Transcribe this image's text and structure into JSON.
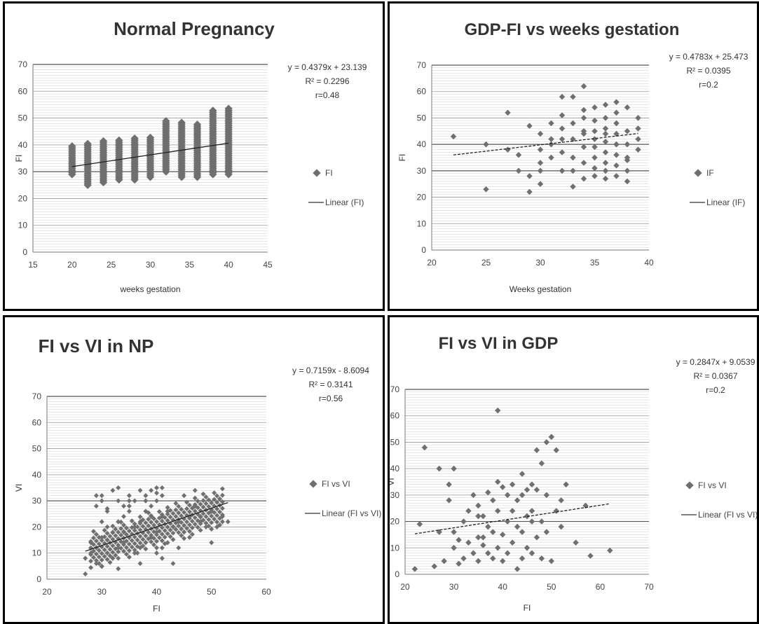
{
  "chart_data": [
    {
      "id": "np",
      "type": "scatter",
      "title": "Normal Pregnancy",
      "xlabel": "weeks gestation",
      "ylabel": "FI",
      "xlim": [
        15,
        45
      ],
      "ylim": [
        0,
        70
      ],
      "xticks": [
        "15",
        "20",
        "25",
        "30",
        "35",
        "40",
        "45"
      ],
      "yticks": [
        "0",
        "10",
        "20",
        "30",
        "40",
        "50",
        "60",
        "70"
      ],
      "legend": [
        "FI",
        "Linear (FI)"
      ],
      "equation": [
        "y = 0.4379x + 23.139",
        "R² = 0.2296",
        "r=0.48"
      ],
      "trendline": {
        "slope": 0.4379,
        "intercept": 23.139,
        "x_from": 20,
        "x_to": 40
      },
      "style": "columns",
      "columns": [
        {
          "x": 20,
          "ymin": 29,
          "ymax": 40
        },
        {
          "x": 22,
          "ymin": 25,
          "ymax": 41
        },
        {
          "x": 24,
          "ymin": 26,
          "ymax": 42
        },
        {
          "x": 26,
          "ymin": 27,
          "ymax": 42
        },
        {
          "x": 28,
          "ymin": 27,
          "ymax": 43
        },
        {
          "x": 30,
          "ymin": 28,
          "ymax": 43
        },
        {
          "x": 32,
          "ymin": 30,
          "ymax": 49
        },
        {
          "x": 34,
          "ymin": 28,
          "ymax": 49
        },
        {
          "x": 36,
          "ymin": 28,
          "ymax": 48
        },
        {
          "x": 38,
          "ymin": 29,
          "ymax": 53
        },
        {
          "x": 40,
          "ymin": 29,
          "ymax": 54
        }
      ]
    },
    {
      "id": "gdp_weeks",
      "type": "scatter",
      "title": "GDP-FI vs weeks gestation",
      "xlabel": "Weeks gestation",
      "ylabel": "FI",
      "xlim": [
        20,
        40
      ],
      "ylim": [
        0,
        70
      ],
      "xticks": [
        "20",
        "25",
        "30",
        "35",
        "40"
      ],
      "yticks": [
        "0",
        "10",
        "20",
        "30",
        "40",
        "50",
        "60",
        "70"
      ],
      "legend": [
        "IF",
        "Linear (IF)"
      ],
      "equation": [
        "y = 0.4783x + 25.473",
        "R² = 0.0395",
        "r=0.2"
      ],
      "trendline": {
        "slope": 0.4783,
        "intercept": 25.473,
        "x_from": 22,
        "x_to": 39
      },
      "style": "points",
      "x": [
        22,
        25,
        25,
        27,
        27,
        28,
        28,
        29,
        29,
        29,
        30,
        30,
        30,
        31,
        31,
        31,
        32,
        32,
        32,
        32,
        33,
        33,
        33,
        33,
        33,
        34,
        34,
        34,
        34,
        34,
        34,
        35,
        35,
        35,
        35,
        35,
        35,
        36,
        36,
        36,
        36,
        36,
        36,
        36,
        37,
        37,
        37,
        37,
        37,
        37,
        37,
        38,
        38,
        38,
        38,
        38,
        38,
        39,
        39,
        39,
        39,
        30,
        31,
        32,
        33,
        34,
        35,
        36,
        37,
        38,
        35,
        34,
        36,
        37,
        30,
        32
      ],
      "y": [
        43,
        23,
        40,
        38,
        52,
        30,
        36,
        22,
        28,
        47,
        30,
        38,
        44,
        35,
        40,
        48,
        30,
        42,
        51,
        58,
        24,
        35,
        42,
        48,
        58,
        27,
        33,
        39,
        44,
        50,
        62,
        28,
        35,
        42,
        45,
        49,
        54,
        27,
        33,
        37,
        41,
        46,
        50,
        55,
        32,
        36,
        40,
        44,
        48,
        52,
        56,
        26,
        30,
        35,
        40,
        45,
        54,
        38,
        42,
        46,
        50,
        33,
        42,
        37,
        30,
        45,
        39,
        30,
        28,
        34,
        31,
        53,
        44,
        40,
        25,
        46
      ]
    },
    {
      "id": "np_vi",
      "type": "scatter",
      "title": "FI vs VI in NP",
      "xlabel": "FI",
      "ylabel": "VI",
      "xlim": [
        20,
        60
      ],
      "ylim": [
        0,
        70
      ],
      "xticks": [
        "20",
        "30",
        "40",
        "50",
        "60"
      ],
      "yticks": [
        "0",
        "10",
        "20",
        "30",
        "40",
        "50",
        "60",
        "70"
      ],
      "legend": [
        "FI vs VI",
        "Linear (FI vs VI)"
      ],
      "equation": [
        "y = 0.7159x - 8.6094",
        "R² = 0.3141",
        "r=0.56"
      ],
      "trendline": {
        "slope": 0.7159,
        "intercept": -8.6094,
        "x_from": 27,
        "x_to": 53
      },
      "style": "dense",
      "x": [
        27,
        27,
        28,
        28,
        29,
        29,
        30,
        30,
        30,
        31,
        31,
        31,
        32,
        32,
        32,
        33,
        33,
        33,
        34,
        34,
        34,
        35,
        35,
        35,
        36,
        36,
        36,
        37,
        37,
        37,
        38,
        38,
        38,
        39,
        39,
        39,
        40,
        40,
        40,
        41,
        41,
        41,
        42,
        42,
        43,
        44,
        45,
        46,
        47,
        48,
        49,
        50,
        51,
        52,
        53,
        29,
        30,
        33,
        35,
        38,
        40,
        42,
        30,
        32,
        28,
        31,
        34,
        36,
        39,
        41,
        44,
        46,
        48,
        50,
        52,
        33,
        37,
        40,
        43,
        35,
        41,
        38,
        45,
        47,
        29,
        31
      ],
      "y": [
        2,
        8,
        10,
        14,
        6,
        12,
        30,
        16,
        22,
        10,
        20,
        26,
        8,
        18,
        34,
        12,
        22,
        30,
        14,
        24,
        28,
        16,
        26,
        32,
        10,
        20,
        30,
        12,
        22,
        34,
        14,
        26,
        32,
        16,
        28,
        34,
        18,
        30,
        35,
        12,
        24,
        35,
        14,
        26,
        20,
        22,
        18,
        24,
        28,
        22,
        20,
        26,
        20,
        24,
        22,
        28,
        32,
        35,
        28,
        30,
        33,
        26,
        5,
        8,
        12,
        15,
        18,
        20,
        24,
        8,
        12,
        16,
        24,
        14,
        22,
        4,
        6,
        10,
        6,
        30,
        32,
        30,
        32,
        34,
        32,
        27
      ]
    },
    {
      "id": "gdp_vi",
      "type": "scatter",
      "title": "FI vs VI in GDP",
      "xlabel": "FI",
      "ylabel": "VI",
      "xlim": [
        20,
        70
      ],
      "ylim": [
        0,
        70
      ],
      "xticks": [
        "20",
        "30",
        "40",
        "50",
        "60",
        "70"
      ],
      "yticks": [
        "0",
        "10",
        "20",
        "30",
        "40",
        "50",
        "60",
        "70"
      ],
      "legend": [
        "FI vs VI",
        "Linear (FI vs VI)"
      ],
      "equation": [
        "y = 0.2847x + 9.0539",
        "R² = 0.0367",
        "r=0.2"
      ],
      "trendline": {
        "slope": 0.2847,
        "intercept": 9.0539,
        "x_from": 22,
        "x_to": 62
      },
      "style": "points",
      "x": [
        22,
        23,
        24,
        26,
        27,
        27,
        28,
        29,
        29,
        30,
        30,
        31,
        32,
        32,
        33,
        33,
        34,
        34,
        35,
        35,
        35,
        36,
        36,
        37,
        37,
        37,
        38,
        38,
        38,
        39,
        39,
        39,
        40,
        40,
        40,
        41,
        41,
        41,
        42,
        42,
        42,
        43,
        43,
        43,
        44,
        44,
        44,
        45,
        45,
        45,
        46,
        46,
        46,
        47,
        47,
        48,
        48,
        48,
        49,
        49,
        50,
        50,
        51,
        51,
        52,
        53,
        55,
        57,
        58,
        62,
        39,
        49,
        50,
        52,
        30,
        31,
        35,
        36,
        44,
        46,
        47
      ],
      "y": [
        2,
        19,
        48,
        3,
        16,
        40,
        5,
        28,
        34,
        10,
        40,
        13,
        6,
        20,
        12,
        24,
        8,
        30,
        5,
        14,
        26,
        11,
        22,
        8,
        18,
        31,
        6,
        16,
        28,
        62,
        10,
        24,
        5,
        15,
        33,
        8,
        20,
        30,
        12,
        24,
        34,
        2,
        18,
        28,
        6,
        16,
        30,
        10,
        22,
        32,
        8,
        24,
        34,
        14,
        47,
        6,
        20,
        42,
        16,
        30,
        52,
        5,
        24,
        47,
        18,
        34,
        12,
        26,
        7,
        9,
        35,
        50,
        52,
        28,
        16,
        4,
        22,
        14,
        38,
        20,
        32
      ]
    }
  ]
}
